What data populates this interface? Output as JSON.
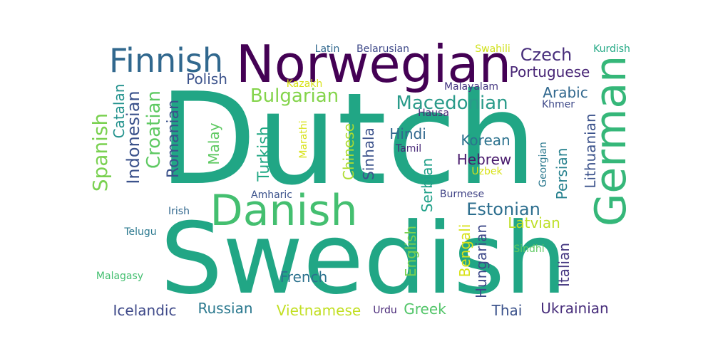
{
  "words": [
    {
      "text": "Dutch",
      "color": "#21a685",
      "rot": 0
    },
    {
      "text": "Swedish",
      "color": "#21a685",
      "rot": 0
    },
    {
      "text": "Norwegian",
      "color": "#440154",
      "rot": 0
    },
    {
      "text": "German",
      "color": "#35b779",
      "rot": -90
    },
    {
      "text": "Danish",
      "color": "#44bf70",
      "rot": 0
    },
    {
      "text": "Finnish",
      "color": "#31688e",
      "rot": 0
    },
    {
      "text": "Czech",
      "color": "#472d7b",
      "rot": 0
    },
    {
      "text": "Portuguese",
      "color": "#482576",
      "rot": 0
    },
    {
      "text": "Bulgarian",
      "color": "#84d44b",
      "rot": 0
    },
    {
      "text": "Macedonian",
      "color": "#2a9b8a",
      "rot": 0
    },
    {
      "text": "Estonian",
      "color": "#2c6e8e",
      "rot": 0
    },
    {
      "text": "Polish",
      "color": "#3b528b",
      "rot": 0
    },
    {
      "text": "Arabic",
      "color": "#31688e",
      "rot": 0
    },
    {
      "text": "Hindi",
      "color": "#31688e",
      "rot": 0
    },
    {
      "text": "Korean",
      "color": "#2c728e",
      "rot": 0
    },
    {
      "text": "Hebrew",
      "color": "#481a6c",
      "rot": 0
    },
    {
      "text": "Indonesian",
      "color": "#3b528b",
      "rot": -90
    },
    {
      "text": "Croatian",
      "color": "#5ec962",
      "rot": -90
    },
    {
      "text": "Romanian",
      "color": "#3b528b",
      "rot": -90
    },
    {
      "text": "Spanish",
      "color": "#7ad151",
      "rot": -90
    },
    {
      "text": "Catalan",
      "color": "#21918c",
      "rot": -90
    },
    {
      "text": "Turkish",
      "color": "#22a884",
      "rot": -90
    },
    {
      "text": "Malay",
      "color": "#5ec962",
      "rot": -90
    },
    {
      "text": "Chinese",
      "color": "#addc30",
      "rot": -90
    },
    {
      "text": "Sinhala",
      "color": "#3b528b",
      "rot": -90
    },
    {
      "text": "Serbian",
      "color": "#1fa088",
      "rot": -90
    },
    {
      "text": "English",
      "color": "#7ad151",
      "rot": -90
    },
    {
      "text": "Bengali",
      "color": "#d8e219",
      "rot": -90
    },
    {
      "text": "Hungarian",
      "color": "#3e4989",
      "rot": -90
    },
    {
      "text": "Italian",
      "color": "#453781",
      "rot": -90
    },
    {
      "text": "Persian",
      "color": "#26818e",
      "rot": -90
    },
    {
      "text": "Lithuanian",
      "color": "#3b528b",
      "rot": -90
    },
    {
      "text": "Georgian",
      "color": "#2a788e",
      "rot": -90
    },
    {
      "text": "Latvian",
      "color": "#bddf26",
      "rot": 0
    },
    {
      "text": "French",
      "color": "#2c728e",
      "rot": 0
    },
    {
      "text": "Icelandic",
      "color": "#3e4989",
      "rot": 0
    },
    {
      "text": "Russian",
      "color": "#2a788e",
      "rot": 0
    },
    {
      "text": "Vietnamese",
      "color": "#c2df23",
      "rot": 0
    },
    {
      "text": "Greek",
      "color": "#52c569",
      "rot": 0
    },
    {
      "text": "Thai",
      "color": "#3b528b",
      "rot": 0
    },
    {
      "text": "Ukrainian",
      "color": "#472d7b",
      "rot": 0
    },
    {
      "text": "Urdu",
      "color": "#482878",
      "rot": 0
    },
    {
      "text": "Latin",
      "color": "#31688e",
      "rot": 0
    },
    {
      "text": "Belarusian",
      "color": "#3e4989",
      "rot": 0
    },
    {
      "text": "Swahili",
      "color": "#d0e11c",
      "rot": 0
    },
    {
      "text": "Kurdish",
      "color": "#22a884",
      "rot": 0
    },
    {
      "text": "Kazakh",
      "color": "#d8e219",
      "rot": 0
    },
    {
      "text": "Malayalam",
      "color": "#453781",
      "rot": 0
    },
    {
      "text": "Hausa",
      "color": "#482878",
      "rot": 0
    },
    {
      "text": "Khmer",
      "color": "#3e4989",
      "rot": 0
    },
    {
      "text": "Marathi",
      "color": "#d8e219",
      "rot": -90
    },
    {
      "text": "Tamil",
      "color": "#482878",
      "rot": 0
    },
    {
      "text": "Uzbek",
      "color": "#d8e219",
      "rot": 0
    },
    {
      "text": "Amharic",
      "color": "#3b528b",
      "rot": 0
    },
    {
      "text": "Burmese",
      "color": "#414487",
      "rot": 0
    },
    {
      "text": "Irish",
      "color": "#31688e",
      "rot": 0
    },
    {
      "text": "Telugu",
      "color": "#2a788e",
      "rot": 0
    },
    {
      "text": "Sindhi",
      "color": "#5ec962",
      "rot": 0
    },
    {
      "text": "Malagasy",
      "color": "#44bf70",
      "rot": 0
    }
  ]
}
